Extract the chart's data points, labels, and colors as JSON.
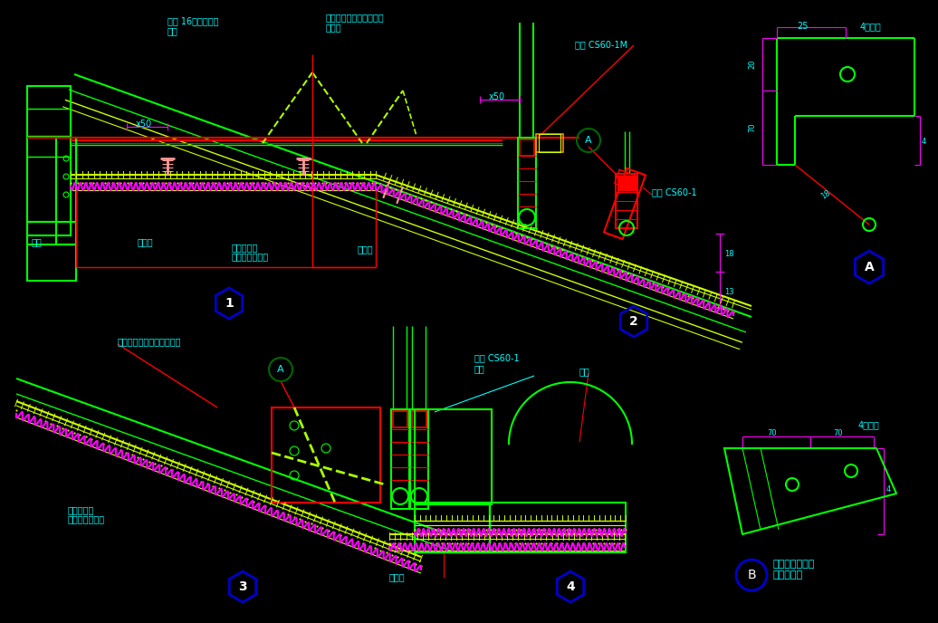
{
  "bg": "#000000",
  "G": "#00FF00",
  "CY": "#00FFFF",
  "R": "#FF0000",
  "Y": "#CCFF00",
  "M": "#FF00FF",
  "W": "#FFFFFF",
  "LM": "#AAFF00",
  "P": "#FF9999",
  "DG": "#006600",
  "BL": "#0000CC",
  "OR": "#FF8800",
  "labels": {
    "t1": "双层 16号镀锌钢丝\n焊接",
    "t2": "横截加龙骨与主龙骨焊接\n主龙骨",
    "t3": "吊件 CS60-1M",
    "t4": "吊件 CS60-1",
    "t5": "灯槽",
    "t6": "次龙骨",
    "t7": "纸面石膏板",
    "t8": "矿棉板（粘贴）",
    "t9": "主龙骨",
    "t10": "4镀钢板",
    "t11": "连接水平主龙骨\n与斜主龙骨",
    "t12": "斜主龙骨与水平主龙骨焊接",
    "t13": "筒灯",
    "t14": "钢框",
    "t15": "x50",
    "t16": "x50",
    "t17": "25",
    "t18": "20",
    "t19": "70",
    "t20": "70",
    "t21": "4",
    "t22": "18",
    "t23": "20"
  }
}
